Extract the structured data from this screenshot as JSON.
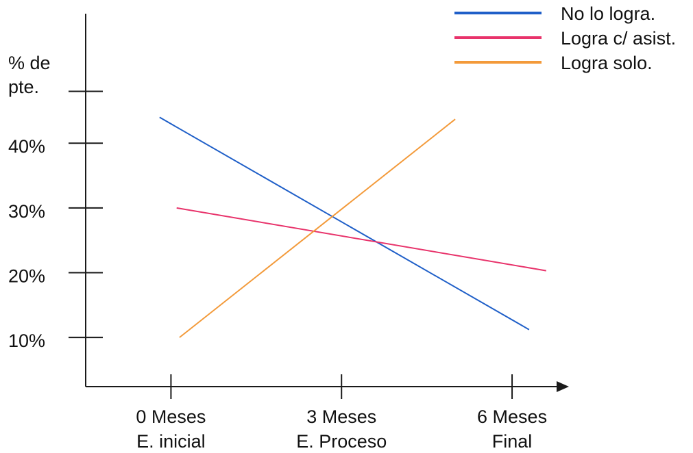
{
  "chart_data": {
    "type": "line",
    "ylabel_lines": [
      "% de",
      "pte."
    ],
    "y_ticks": [
      {
        "value": 10,
        "label": "10%"
      },
      {
        "value": 20,
        "label": "20%"
      },
      {
        "value": 30,
        "label": "30%"
      },
      {
        "value": 40,
        "label": "40%"
      },
      {
        "value": 48,
        "label": ""
      }
    ],
    "ylim": [
      2.4,
      60
    ],
    "x_ticks": [
      {
        "value": 0,
        "line1": "0 Meses",
        "line2": "E. inicial"
      },
      {
        "value": 3,
        "line1": "3 Meses",
        "line2": "E. Proceso"
      },
      {
        "value": 6,
        "line1": "6 Meses",
        "line2": "Final"
      }
    ],
    "xlim": [
      -1.5,
      7
    ],
    "series": [
      {
        "name": "No lo logra.",
        "color": "#1f5fc8",
        "points": [
          [
            -0.2,
            44
          ],
          [
            6.3,
            11.2
          ]
        ]
      },
      {
        "name": "Logra c/ asist.",
        "color": "#e8336b",
        "points": [
          [
            0.1,
            30
          ],
          [
            6.6,
            20.3
          ]
        ]
      },
      {
        "name": "Logra solo.",
        "color": "#f39a3a",
        "points": [
          [
            0.15,
            10
          ],
          [
            5.0,
            43.7
          ]
        ]
      }
    ],
    "legend_position": "top-right",
    "grid": false
  }
}
